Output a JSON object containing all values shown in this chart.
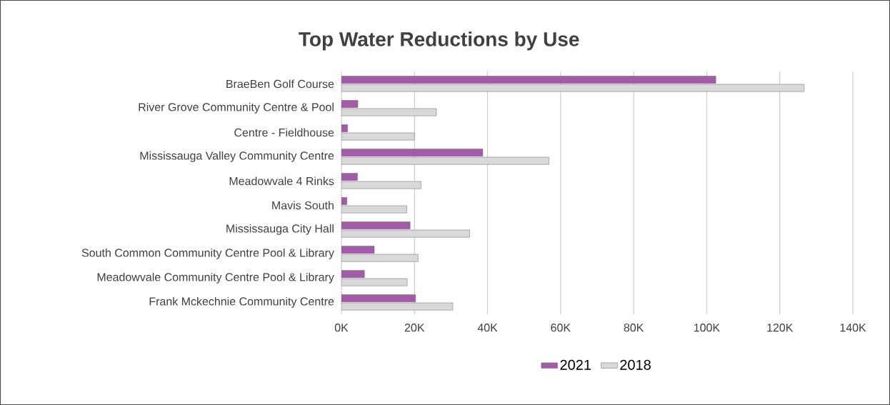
{
  "chart_data": {
    "type": "bar",
    "orientation": "horizontal",
    "title": "Top Water Reductions by Use",
    "categories": [
      "BraeBen Golf Course",
      "River Grove Community Centre & Pool",
      "Centre - Fieldhouse",
      "Mississauga Valley Community Centre",
      "Meadowvale 4 Rinks",
      "Mavis South",
      "Mississauga City Hall",
      "South Common Community Centre Pool & Library",
      "Meadowvale Community Centre Pool & Library",
      "Frank Mckechnie Community Centre"
    ],
    "series": [
      {
        "name": "2021",
        "color": "#a35aa8",
        "values": [
          102500,
          4500,
          1700,
          38700,
          4400,
          1500,
          18800,
          9000,
          6300,
          20300
        ]
      },
      {
        "name": "2018",
        "color": "#d9d9d9",
        "values": [
          126700,
          26000,
          20000,
          56800,
          21800,
          17900,
          35100,
          21000,
          18000,
          30500
        ]
      }
    ],
    "xlim": [
      0,
      140000
    ],
    "xticks": [
      {
        "value": 0,
        "label": "0K"
      },
      {
        "value": 20000,
        "label": "20K"
      },
      {
        "value": 40000,
        "label": "40K"
      },
      {
        "value": 60000,
        "label": "60K"
      },
      {
        "value": 80000,
        "label": "80K"
      },
      {
        "value": 100000,
        "label": "100K"
      },
      {
        "value": 120000,
        "label": "120K"
      },
      {
        "value": 140000,
        "label": "140K"
      }
    ],
    "grid": "x",
    "legend": "bottom"
  }
}
